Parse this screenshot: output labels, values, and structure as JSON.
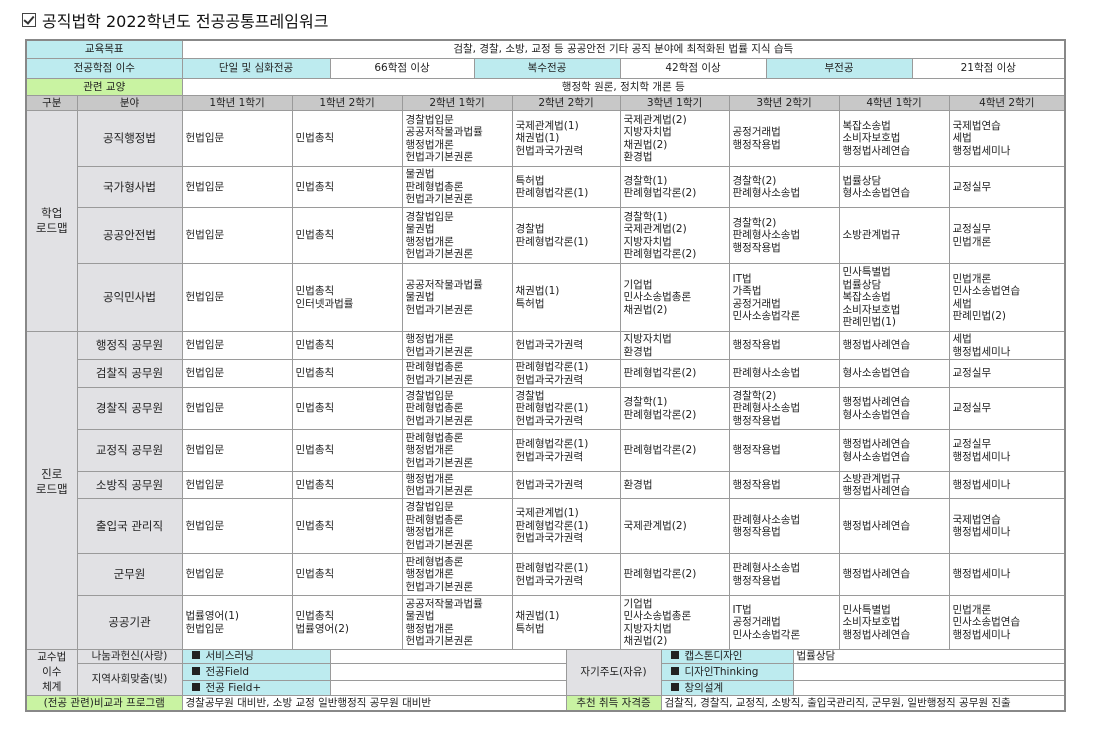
{
  "title": "공직법학 2022학년도 전공공통프레임워크",
  "colors": {
    "label_cyan": "#bdebef",
    "label_green": "#c9f3a2",
    "header_gray": "#c8c8c8",
    "row_label_gray": "#e1e1e4"
  },
  "top": {
    "goal_label": "교육목표",
    "goal_value": "검찰, 경찰, 소방, 교정 등 공공안전 기타 공직 분야에 최적화된 법률 지식 습득",
    "credits_label": "전공학점 이수",
    "single_label": "단일 및 심화전공",
    "single_value": "66학점 이상",
    "double_label": "복수전공",
    "double_value": "42학점 이상",
    "minor_label": "부전공",
    "minor_value": "21학점 이상",
    "liberal_label": "관련 교양",
    "liberal_value": "행정학 원론, 정치학 개론 등"
  },
  "main": {
    "headers": [
      "구분",
      "분야",
      "1학년 1학기",
      "1학년 2학기",
      "2학년 1학기",
      "2학년 2학기",
      "3학년 1학기",
      "3학년 2학기",
      "4학년 1학기",
      "4학년 2학기"
    ],
    "groups": [
      {
        "label": "학업\n로드맵",
        "rows": [
          {
            "field": "공직행정법",
            "cells": [
              "헌법입문",
              "민법총칙",
              "경찰법입문\n공공저작물과법률\n행정법개론\n헌법과기본권론",
              "국제관계법(1)\n채권법(1)\n헌법과국가권력",
              "국제관계법(2)\n지방자치법\n채권법(2)\n환경법",
              "공정거래법\n행정작용법",
              "복잡소송법\n소비자보호법\n행정법사례연습",
              "국제법연습\n세법\n행정법세미나"
            ]
          },
          {
            "field": "국가형사법",
            "cells": [
              "헌법입문",
              "민법총칙",
              "물권법\n판례형법총론\n헌법과기본권론",
              "특허법\n판례형법각론(1)",
              "경찰학(1)\n판례형법각론(2)",
              "경찰학(2)\n판례형사소송법",
              "법률상담\n형사소송법연습",
              "교정실무"
            ]
          },
          {
            "field": "공공안전법",
            "cells": [
              "헌법입문",
              "민법총칙",
              "경찰법입문\n물권법\n행정법개론\n헌법과기본권론",
              "경찰법\n판례형법각론(1)",
              "경찰학(1)\n국제관계법(2)\n지방자치법\n판례형법각론(2)",
              "경찰학(2)\n판례형사소송법\n행정작용법",
              "소방관계법규",
              "교정실무\n민법개론"
            ]
          },
          {
            "field": "공익민사법",
            "cells": [
              "헌법입문",
              "민법총칙\n인터넷과법률",
              "공공저작물과법률\n물권법\n헌법과기본권론",
              "채권법(1)\n특허법",
              "기업법\n민사소송법총론\n채권법(2)",
              "IT법\n가족법\n공정거래법\n민사소송법각론",
              "민사특별법\n법률상담\n복잡소송법\n소비자보호법\n판례민법(1)",
              "민법개론\n민사소송법연습\n세법\n판례민법(2)"
            ]
          }
        ]
      },
      {
        "label": "진로\n로드맵",
        "rows": [
          {
            "field": "행정직 공무원",
            "cells": [
              "헌법입문",
              "민법총칙",
              "행정법개론\n헌법과기본권론",
              "헌법과국가권력",
              "지방자치법\n환경법",
              "행정작용법",
              "행정법사례연습",
              "세법\n행정법세미나"
            ]
          },
          {
            "field": "검찰직 공무원",
            "cells": [
              "헌법입문",
              "민법총칙",
              "판례형법총론\n헌법과기본권론",
              "판례형법각론(1)\n헌법과국가권력",
              "판례형법각론(2)",
              "판례형사소송법",
              "형사소송법연습",
              "교정실무"
            ]
          },
          {
            "field": "경찰직 공무원",
            "cells": [
              "헌법입문",
              "민법총칙",
              "경찰법입문\n판례형법총론\n헌법과기본권론",
              "경찰법\n판례형법각론(1)\n헌법과국가권력",
              "경찰학(1)\n판례형법각론(2)",
              "경찰학(2)\n판례형사소송법\n행정작용법",
              "행정법사례연습\n형사소송법연습",
              "교정실무"
            ]
          },
          {
            "field": "교정직 공무원",
            "cells": [
              "헌법입문",
              "민법총칙",
              "판례형법총론\n행정법개론\n헌법과기본권론",
              "판례형법각론(1)\n헌법과국가권력",
              "판례형법각론(2)",
              "행정작용법",
              "행정법사례연습\n형사소송법연습",
              "교정실무\n행정법세미나"
            ]
          },
          {
            "field": "소방직 공무원",
            "cells": [
              "헌법입문",
              "민법총칙",
              "행정법개론\n헌법과기본권론",
              "헌법과국가권력",
              "환경법",
              "행정작용법",
              "소방관계법규\n행정법사례연습",
              "행정법세미나"
            ]
          },
          {
            "field": "출입국 관리직",
            "cells": [
              "헌법입문",
              "민법총칙",
              "경찰법입문\n판례형법총론\n행정법개론\n헌법과기본권론",
              "국제관계법(1)\n판례형법각론(1)\n헌법과국가권력",
              "국제관계법(2)",
              "판례형사소송법\n행정작용법",
              "행정법사례연습",
              "국제법연습\n행정법세미나"
            ]
          },
          {
            "field": "군무원",
            "cells": [
              "헌법입문",
              "민법총칙",
              "판례형법총론\n행정법개론\n헌법과기본권론",
              "판례형법각론(1)\n헌법과국가권력",
              "판례형법각론(2)",
              "판례형사소송법\n행정작용법",
              "행정법사례연습",
              "행정법세미나"
            ]
          },
          {
            "field": "공공기관",
            "cells": [
              "법률영어(1)\n헌법입문",
              "민법총칙\n법률영어(2)",
              "공공저작물과법률\n물권법\n행정법개론\n헌법과기본권론",
              "채권법(1)\n특허법",
              "기업법\n민사소송법총론\n지방자치법\n채권법(2)",
              "IT법\n공정거래법\n민사소송법각론",
              "민사특별법\n소비자보호법\n행정법사례연습",
              "민법개론\n민사소송법연습\n행정법세미나"
            ]
          }
        ]
      }
    ]
  },
  "bottom": {
    "method_label": "교수법\n이수\n체계",
    "sharing_label": "나눔과헌신(사랑)",
    "service_learning": "서비스러닝",
    "community_label": "지역사회맞춤(빛)",
    "major_field": "전공Field",
    "major_field_plus": "전공 Field+",
    "self_label": "자기주도(자유)",
    "capstone": "캡스톤디자인",
    "capstone_value": "법률상담",
    "design_thinking": "디자인Thinking",
    "creative_design": "창의설계",
    "extracurricular_label": "(전공 관련)비교과 프로그램",
    "extracurricular_value": "경찰공무원 대비반, 소방 교정 일반행정직 공무원 대비반",
    "cert_label": "추천 취득 자격증",
    "cert_value": "검찰직, 경찰직, 교정직, 소방직, 출입국관리직, 군무원, 일반행정직 공무원 진출"
  }
}
